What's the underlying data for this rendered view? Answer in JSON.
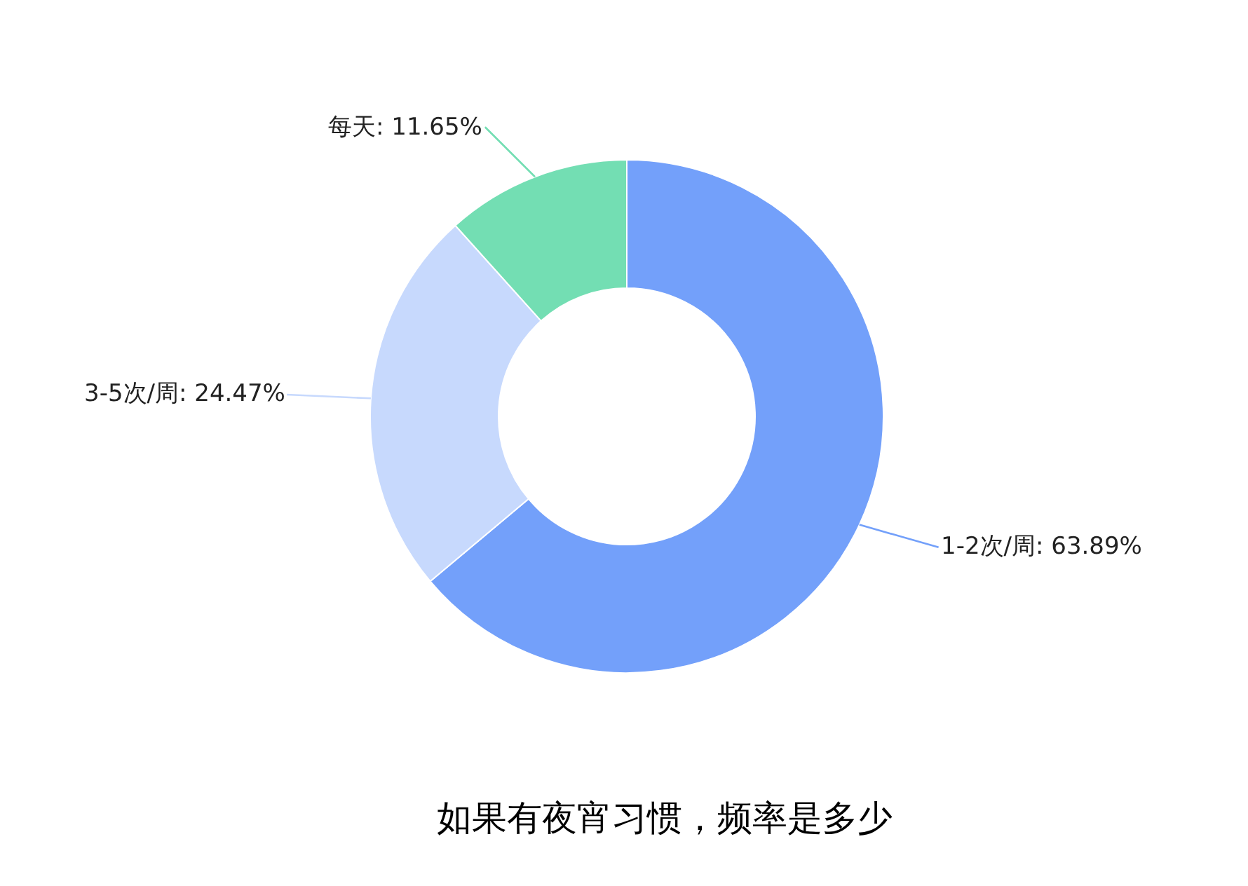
{
  "chart_data": {
    "type": "donut",
    "title": "如果有夜宵习惯，频率是多少",
    "categories": [
      "1-2次/周",
      "3-5次/周",
      "每天"
    ],
    "values": [
      63.89,
      24.47,
      11.65
    ],
    "colors": [
      "#73a0fa",
      "#c7d9fd",
      "#73deb3"
    ],
    "value_labels": [
      "63.89%",
      "24.47%",
      "11.65%"
    ],
    "legend": false
  }
}
